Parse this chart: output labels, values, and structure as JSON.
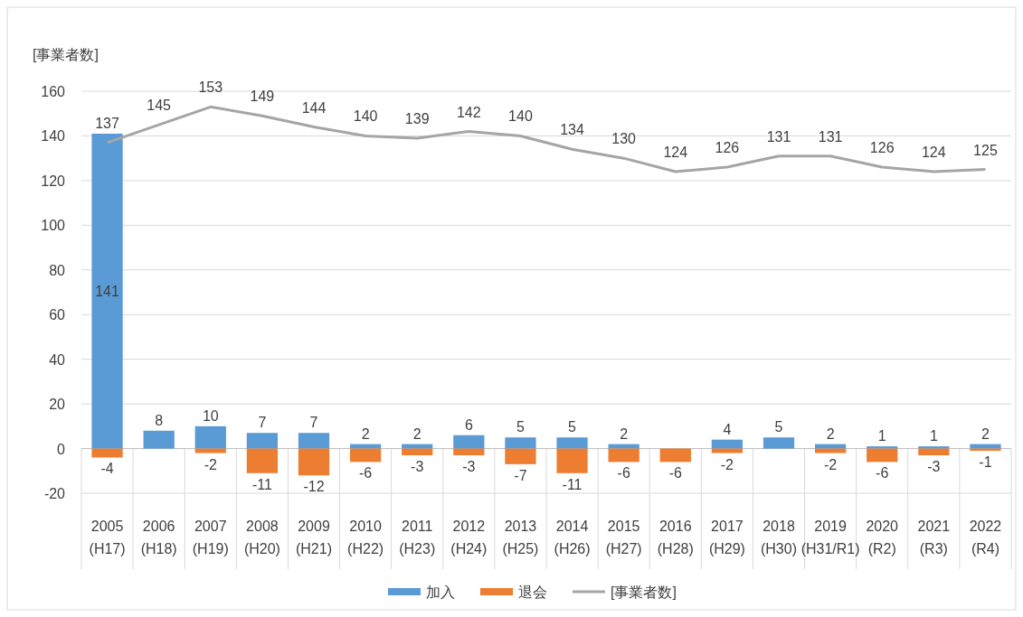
{
  "chart_data": {
    "type": "bar",
    "stacked": true,
    "ylabel": "[事業者数]",
    "categories": [
      "2005\n(H17)",
      "2006\n(H18)",
      "2007\n(H19)",
      "2008\n(H20)",
      "2009\n(H21)",
      "2010\n(H22)",
      "2011\n(H23)",
      "2012\n(H24)",
      "2013\n(H25)",
      "2014\n(H26)",
      "2015\n(H27)",
      "2016\n(H28)",
      "2017\n(H29)",
      "2018\n(H30)",
      "2019\n(H31/R1)",
      "2020\n(R2)",
      "2021\n(R3)",
      "2022\n(R4)"
    ],
    "series": [
      {
        "name": "加入",
        "color": "#5b9bd5",
        "values": [
          141,
          8,
          10,
          7,
          7,
          2,
          2,
          6,
          5,
          5,
          2,
          null,
          4,
          5,
          2,
          1,
          1,
          2
        ]
      },
      {
        "name": "退会",
        "color": "#ed7d31",
        "values": [
          -4,
          null,
          -2,
          -11,
          -12,
          -6,
          -3,
          -3,
          -7,
          -11,
          -6,
          -6,
          -2,
          null,
          -2,
          -6,
          -3,
          -1
        ]
      },
      {
        "name": "[事業者数]",
        "type": "line",
        "color": "#a5a5a5",
        "values": [
          137,
          145,
          153,
          149,
          144,
          140,
          139,
          142,
          140,
          134,
          130,
          124,
          126,
          131,
          131,
          126,
          124,
          125
        ]
      }
    ],
    "ylim": [
      -20,
      160
    ],
    "yticks": [
      -20,
      0,
      20,
      40,
      60,
      80,
      100,
      120,
      140,
      160
    ],
    "grid": true,
    "legend": "bottom",
    "data_labels": true,
    "marker": "none"
  }
}
